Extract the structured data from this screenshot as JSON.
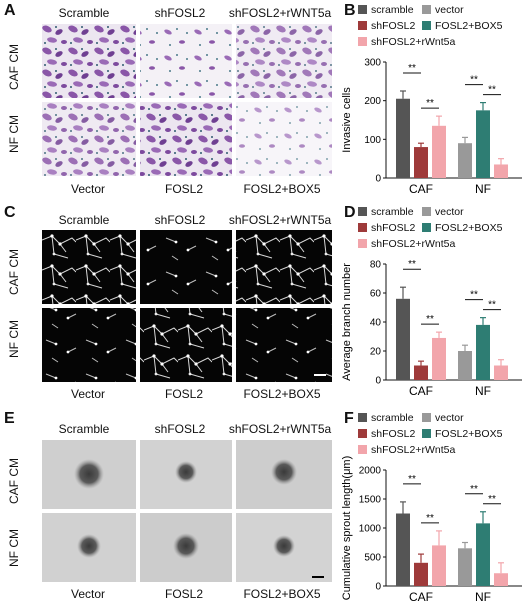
{
  "panels": {
    "A": {
      "letter": "A",
      "top_cols": [
        "Scramble",
        "shFOSL2",
        "shFOSL2+rWNT5a"
      ],
      "bottom_cols": [
        "Vector",
        "FOSL2",
        "FOSL2+BOX5"
      ],
      "rows": [
        "CAF CM",
        "NF CM"
      ]
    },
    "C": {
      "letter": "C",
      "top_cols": [
        "Scramble",
        "shFOSL2",
        "shFOSL2+rWNT5a"
      ],
      "bottom_cols": [
        "Vector",
        "FOSL2",
        "FOSL2+BOX5"
      ],
      "rows": [
        "CAF CM",
        "NF CM"
      ]
    },
    "E": {
      "letter": "E",
      "top_cols": [
        "Scramble",
        "shFOSL2",
        "shFOSL2+rWNT5a"
      ],
      "bottom_cols": [
        "Vector",
        "FOSL2",
        "FOSL2+BOX5"
      ],
      "rows": [
        "CAF CM",
        "NF CM"
      ]
    },
    "B": {
      "letter": "B"
    },
    "D": {
      "letter": "D"
    },
    "F": {
      "letter": "F"
    }
  },
  "colors": {
    "scramble": "#555555",
    "vector": "#999999",
    "shFOSL2": "#9e3a3a",
    "FOSL2_BOX5": "#2e7d73",
    "shFOSL2_rWnt5a": "#f2a5ab"
  },
  "sig": "**",
  "chart_data": [
    {
      "type": "bar",
      "panel": "B",
      "ylabel": "Invasive cells",
      "ylim": [
        0,
        300
      ],
      "yticks": [
        0,
        100,
        200,
        300
      ],
      "groups": [
        "CAF",
        "NF"
      ],
      "legend": [
        "scramble",
        "vector",
        "shFOSL2",
        "FOSL2+BOX5",
        "shFOSL2+rWnt5a"
      ],
      "series": [
        {
          "name": "scramble",
          "color_key": "scramble",
          "group": "CAF",
          "value": 205,
          "err": 20
        },
        {
          "name": "shFOSL2",
          "color_key": "shFOSL2",
          "group": "CAF",
          "value": 80,
          "err": 10
        },
        {
          "name": "shFOSL2+rWnt5a",
          "color_key": "shFOSL2_rWnt5a",
          "group": "CAF",
          "value": 135,
          "err": 25
        },
        {
          "name": "vector",
          "color_key": "vector",
          "group": "NF",
          "value": 90,
          "err": 15
        },
        {
          "name": "FOSL2+BOX5",
          "color_key": "FOSL2_BOX5",
          "group": "NF",
          "value": 175,
          "err": 20
        },
        {
          "name": "FOSL2+BOX5",
          "color_key": "shFOSL2_rWnt5a",
          "group": "NF",
          "value": 35,
          "err": 15
        }
      ]
    },
    {
      "type": "bar",
      "panel": "D",
      "ylabel": "Average branch number",
      "ylim": [
        0,
        80
      ],
      "yticks": [
        0,
        20,
        40,
        60,
        80
      ],
      "groups": [
        "CAF",
        "NF"
      ],
      "legend": [
        "scramble",
        "vector",
        "shFOSL2",
        "FOSL2+BOX5",
        "shFOSL2+rWnt5a"
      ],
      "series": [
        {
          "name": "scramble",
          "color_key": "scramble",
          "group": "CAF",
          "value": 56,
          "err": 8
        },
        {
          "name": "shFOSL2",
          "color_key": "shFOSL2",
          "group": "CAF",
          "value": 10,
          "err": 3
        },
        {
          "name": "shFOSL2+rWnt5a",
          "color_key": "shFOSL2_rWnt5a",
          "group": "CAF",
          "value": 29,
          "err": 4
        },
        {
          "name": "vector",
          "color_key": "vector",
          "group": "NF",
          "value": 20,
          "err": 4
        },
        {
          "name": "FOSL2+BOX5",
          "color_key": "FOSL2_BOX5",
          "group": "NF",
          "value": 38,
          "err": 5
        },
        {
          "name": "FOSL2+BOX5",
          "color_key": "shFOSL2_rWnt5a",
          "group": "NF",
          "value": 10,
          "err": 4
        }
      ]
    },
    {
      "type": "bar",
      "panel": "F",
      "ylabel": "Cumulative sprout length(μm)",
      "ylim": [
        0,
        2000
      ],
      "yticks": [
        0,
        500,
        1000,
        1500,
        2000
      ],
      "groups": [
        "CAF",
        "NF"
      ],
      "legend": [
        "scramble",
        "vector",
        "shFOSL2",
        "FOSL2+BOX5",
        "shFOSL2+rWnt5a"
      ],
      "series": [
        {
          "name": "scramble",
          "color_key": "scramble",
          "group": "CAF",
          "value": 1250,
          "err": 200
        },
        {
          "name": "shFOSL2",
          "color_key": "shFOSL2",
          "group": "CAF",
          "value": 400,
          "err": 150
        },
        {
          "name": "shFOSL2+rWnt5a",
          "color_key": "shFOSL2_rWnt5a",
          "group": "CAF",
          "value": 700,
          "err": 250
        },
        {
          "name": "vector",
          "color_key": "vector",
          "group": "NF",
          "value": 650,
          "err": 100
        },
        {
          "name": "FOSL2+BOX5",
          "color_key": "FOSL2_BOX5",
          "group": "NF",
          "value": 1080,
          "err": 200
        },
        {
          "name": "FOSL2+BOX5",
          "color_key": "shFOSL2_rWnt5a",
          "group": "NF",
          "value": 220,
          "err": 180
        }
      ]
    }
  ]
}
